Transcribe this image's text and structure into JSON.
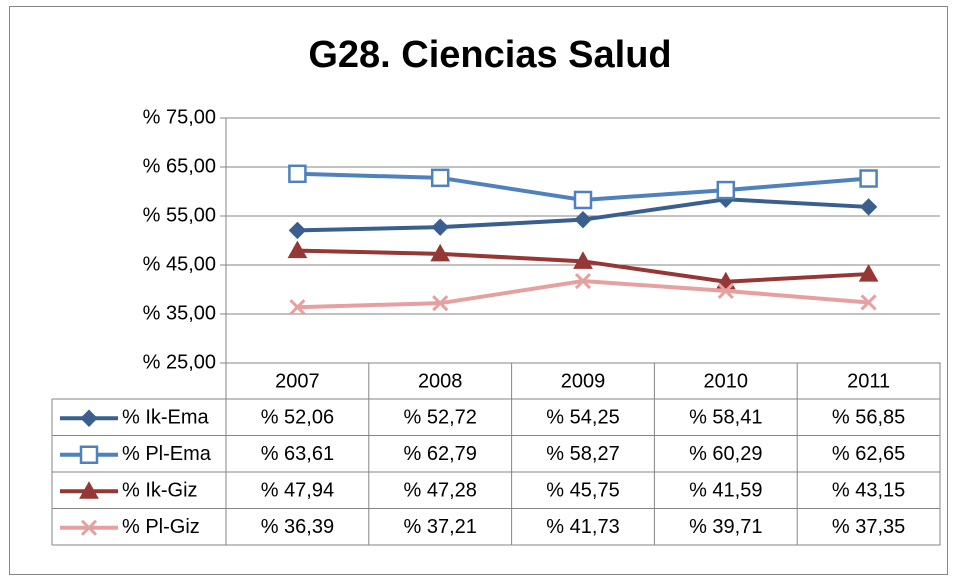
{
  "chart_data": {
    "type": "line",
    "title": "G28. Ciencias Salud",
    "categories": [
      "2007",
      "2008",
      "2009",
      "2010",
      "2011"
    ],
    "ylim": [
      25,
      75
    ],
    "yticks": [
      {
        "value": 25,
        "label": "% 25,00"
      },
      {
        "value": 35,
        "label": "% 35,00"
      },
      {
        "value": 45,
        "label": "% 45,00"
      },
      {
        "value": 55,
        "label": "% 55,00"
      },
      {
        "value": 65,
        "label": "% 65,00"
      },
      {
        "value": 75,
        "label": "% 75,00"
      }
    ],
    "grid": true,
    "series": [
      {
        "name": "% Ik-Ema",
        "color": "#3a5f8f",
        "marker": "diamond",
        "values": [
          52.06,
          52.72,
          54.25,
          58.41,
          56.85
        ],
        "value_labels": [
          "% 52,06",
          "% 52,72",
          "% 54,25",
          "% 58,41",
          "% 56,85"
        ]
      },
      {
        "name": "% Pl-Ema",
        "color": "#4f81bd",
        "marker": "square",
        "values": [
          63.61,
          62.79,
          58.27,
          60.29,
          62.65
        ],
        "value_labels": [
          "% 63,61",
          "% 62,79",
          "% 58,27",
          "% 60,29",
          "% 62,65"
        ]
      },
      {
        "name": "% Ik-Giz",
        "color": "#953735",
        "marker": "triangle",
        "values": [
          47.94,
          47.28,
          45.75,
          41.59,
          43.15
        ],
        "value_labels": [
          "% 47,94",
          "% 47,28",
          "% 45,75",
          "% 41,59",
          "% 43,15"
        ]
      },
      {
        "name": "% Pl-Giz",
        "color": "#e6a0a0",
        "marker": "x",
        "values": [
          36.39,
          37.21,
          41.73,
          39.71,
          37.35
        ],
        "value_labels": [
          "% 36,39",
          "% 37,21",
          "% 41,73",
          "% 39,71",
          "% 37,35"
        ]
      }
    ]
  }
}
